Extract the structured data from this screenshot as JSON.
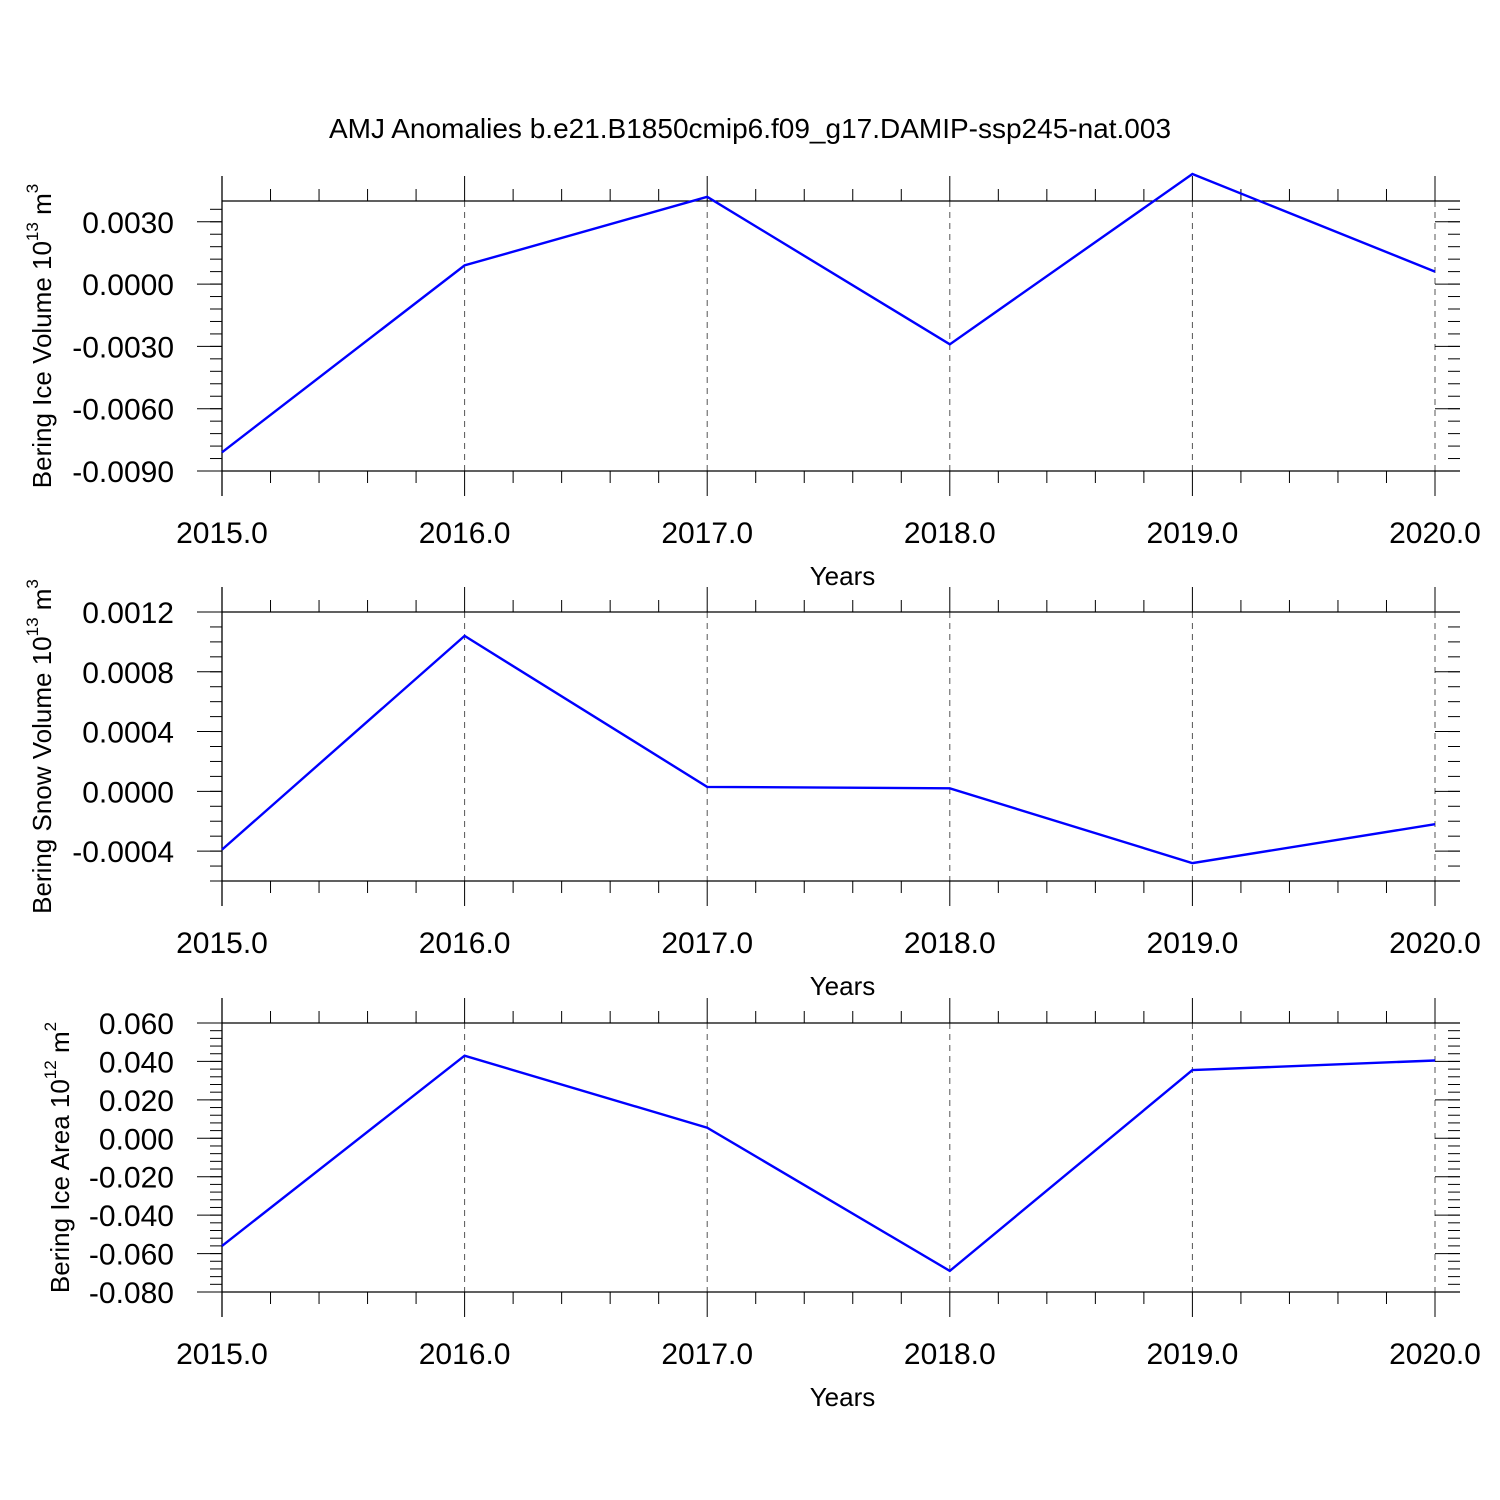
{
  "title": "AMJ Anomalies b.e21.B1850cmip6.f09_g17.DAMIP-ssp245-nat.003",
  "line_color": "#0000ff",
  "chart_data": [
    {
      "type": "line",
      "xlabel": "Years",
      "ylabel": "Bering Ice Volume 10",
      "ylabel_exponent": "13",
      "ylabel_unit": " m",
      "ylabel_unit_exponent": "3",
      "xlim": [
        2015,
        2020
      ],
      "ylim": [
        -0.009,
        0.004
      ],
      "grid": "vertical dashed at major x ticks",
      "x_ticks": [
        2015,
        2016,
        2017,
        2018,
        2019,
        2020
      ],
      "x_tick_labels": [
        "2015.0",
        "2016.0",
        "2017.0",
        "2018.0",
        "2019.0",
        "2020.0"
      ],
      "y_ticks": [
        -0.009,
        -0.006,
        -0.003,
        0.0,
        0.003
      ],
      "y_tick_labels": [
        "-0.0090",
        "-0.0060",
        "-0.0030",
        "0.0000",
        "0.0030"
      ],
      "x_minor_step": 0.2,
      "y_minor_step": 0.0006,
      "series": [
        {
          "x": [
            2015,
            2016,
            2017,
            2018,
            2019,
            2020
          ],
          "values": [
            -0.0081,
            0.0009,
            0.0042,
            -0.0029,
            0.0053,
            0.0006
          ]
        }
      ]
    },
    {
      "type": "line",
      "xlabel": "Years",
      "ylabel": "Bering Snow Volume 10",
      "ylabel_exponent": "13",
      "ylabel_unit": " m",
      "ylabel_unit_exponent": "3",
      "xlim": [
        2015,
        2020
      ],
      "ylim": [
        -0.0006,
        0.0012
      ],
      "grid": "vertical dashed at major x ticks",
      "x_ticks": [
        2015,
        2016,
        2017,
        2018,
        2019,
        2020
      ],
      "x_tick_labels": [
        "2015.0",
        "2016.0",
        "2017.0",
        "2018.0",
        "2019.0",
        "2020.0"
      ],
      "y_ticks": [
        -0.0004,
        0.0,
        0.0004,
        0.0008,
        0.0012
      ],
      "y_tick_labels": [
        "-0.0004",
        "0.0000",
        "0.0004",
        "0.0008",
        "0.0012"
      ],
      "x_minor_step": 0.2,
      "y_minor_step": 0.0001,
      "series": [
        {
          "x": [
            2015,
            2016,
            2017,
            2018,
            2019,
            2020
          ],
          "values": [
            -0.00039,
            0.00104,
            3e-05,
            2e-05,
            -0.00048,
            -0.00022
          ]
        }
      ]
    },
    {
      "type": "line",
      "xlabel": "Years",
      "ylabel": "Bering Ice Area 10",
      "ylabel_exponent": "12",
      "ylabel_unit": " m",
      "ylabel_unit_exponent": "2",
      "xlim": [
        2015,
        2020
      ],
      "ylim": [
        -0.08,
        0.06
      ],
      "grid": "vertical dashed at major x ticks",
      "x_ticks": [
        2015,
        2016,
        2017,
        2018,
        2019,
        2020
      ],
      "x_tick_labels": [
        "2015.0",
        "2016.0",
        "2017.0",
        "2018.0",
        "2019.0",
        "2020.0"
      ],
      "y_ticks": [
        -0.08,
        -0.06,
        -0.04,
        -0.02,
        0.0,
        0.02,
        0.04,
        0.06
      ],
      "y_tick_labels": [
        "-0.080",
        "-0.060",
        "-0.040",
        "-0.020",
        "0.000",
        "0.020",
        "0.040",
        "0.060"
      ],
      "x_minor_step": 0.2,
      "y_minor_step": 0.004,
      "series": [
        {
          "x": [
            2015,
            2016,
            2017,
            2018,
            2019,
            2020
          ],
          "values": [
            -0.056,
            0.043,
            0.0055,
            -0.069,
            0.0355,
            0.0405
          ]
        }
      ]
    }
  ]
}
